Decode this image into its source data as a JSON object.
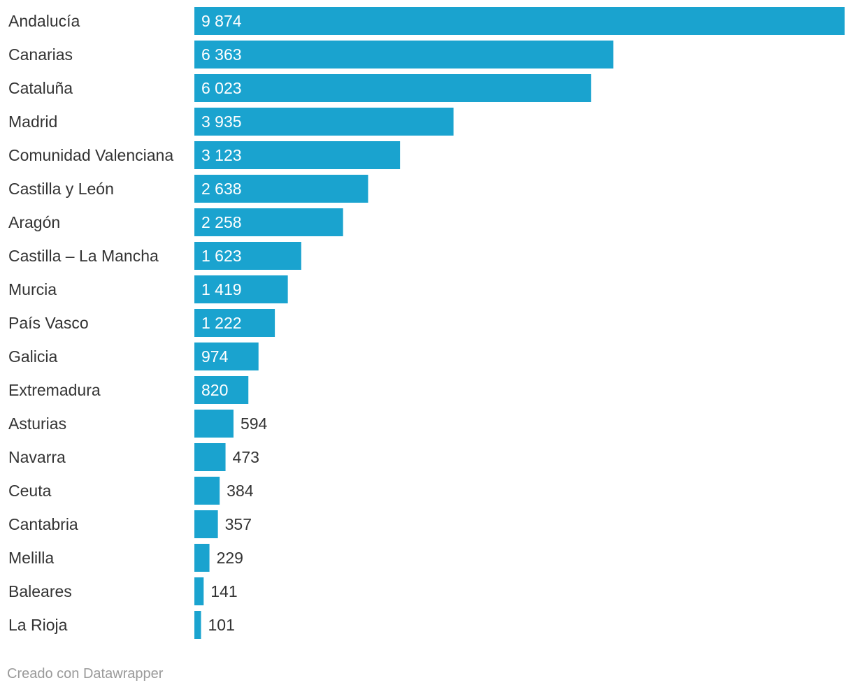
{
  "chart_data": {
    "type": "bar",
    "orientation": "horizontal",
    "categories": [
      "Andalucía",
      "Canarias",
      "Cataluña",
      "Madrid",
      "Comunidad Valenciana",
      "Castilla y León",
      "Aragón",
      "Castilla – La Mancha",
      "Murcia",
      "País Vasco",
      "Galicia",
      "Extremadura",
      "Asturias",
      "Navarra",
      "Ceuta",
      "Cantabria",
      "Melilla",
      "Baleares",
      "La Rioja"
    ],
    "values": [
      9874,
      6363,
      6023,
      3935,
      3123,
      2638,
      2258,
      1623,
      1419,
      1222,
      974,
      820,
      594,
      473,
      384,
      357,
      229,
      141,
      101
    ],
    "value_labels": [
      "9 874",
      "6 363",
      "6 023",
      "3 935",
      "3 123",
      "2 638",
      "2 258",
      "1 623",
      "1 419",
      "1 222",
      "974",
      "820",
      "594",
      "473",
      "384",
      "357",
      "229",
      "141",
      "101"
    ],
    "xlim": [
      0,
      9874
    ],
    "title": "",
    "xlabel": "",
    "ylabel": "",
    "grid": false,
    "legend": "none"
  },
  "colors": {
    "bar": "#1aa3cf",
    "label_inside": "#ffffff",
    "label_outside": "#333333",
    "credit": "#9a9a9a"
  },
  "footer": {
    "credit": "Creado con Datawrapper"
  }
}
